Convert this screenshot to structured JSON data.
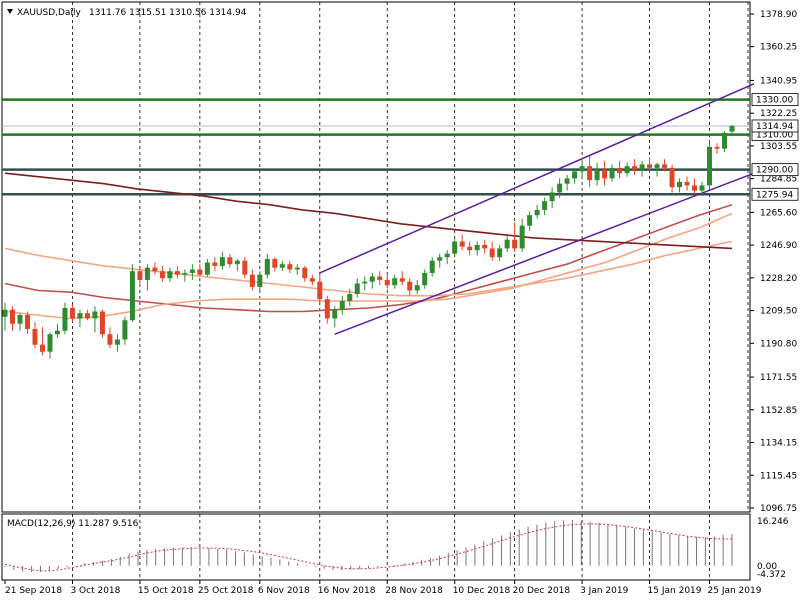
{
  "header": {
    "symbol_label": "XAUUSD,Daily",
    "ohlc": "1311.76 1315.51 1310.56 1314.94",
    "arrow_icon": "triangle-down-icon"
  },
  "macd": {
    "label": "MACD(12,26,9) 11.287 9.516",
    "scale_top": "16.246",
    "scale_zero": "0.00",
    "scale_bottom": "-4.372"
  },
  "chart_data": {
    "type": "candlestick",
    "price_axis_ticks": [
      "1378.90",
      "1360.25",
      "1340.95",
      "1322.25",
      "1303.55",
      "1284.85",
      "1265.60",
      "1246.90",
      "1228.20",
      "1209.50",
      "1190.80",
      "1171.55",
      "1152.85",
      "1134.15",
      "1115.45",
      "1096.75"
    ],
    "date_ticks": [
      "21 Sep 2018",
      "3 Oct 2018",
      "15 Oct 2018",
      "25 Oct 2018",
      "6 Nov 2018",
      "16 Nov 2018",
      "28 Nov 2018",
      "10 Dec 2018",
      "20 Dec 2018",
      "3 Jan 2019",
      "15 Jan 2019",
      "25 Jan 2019"
    ],
    "ylim": [
      1096.75,
      1378.9
    ],
    "horizontal_levels": [
      {
        "value": 1330.0,
        "label": "1330.00",
        "color": "#1f7a1f"
      },
      {
        "value": 1310.0,
        "label": "1310.00",
        "color": "#1f7a1f"
      },
      {
        "value": 1290.0,
        "label": "1290.00",
        "color": "#2f4f4f"
      },
      {
        "value": 1275.94,
        "label": "1275.94",
        "color": "#2f4f4f"
      }
    ],
    "current_price": {
      "value": 1314.94,
      "label": "1314.94"
    },
    "candles": [
      {
        "o": 1206,
        "h": 1214,
        "l": 1198,
        "c": 1210
      },
      {
        "o": 1210,
        "h": 1212,
        "l": 1198,
        "c": 1202
      },
      {
        "o": 1202,
        "h": 1208,
        "l": 1198,
        "c": 1207
      },
      {
        "o": 1207,
        "h": 1209,
        "l": 1196,
        "c": 1199
      },
      {
        "o": 1199,
        "h": 1203,
        "l": 1188,
        "c": 1190
      },
      {
        "o": 1190,
        "h": 1200,
        "l": 1184,
        "c": 1186
      },
      {
        "o": 1186,
        "h": 1197,
        "l": 1182,
        "c": 1196
      },
      {
        "o": 1196,
        "h": 1202,
        "l": 1194,
        "c": 1198
      },
      {
        "o": 1198,
        "h": 1214,
        "l": 1196,
        "c": 1211
      },
      {
        "o": 1211,
        "h": 1213,
        "l": 1203,
        "c": 1205
      },
      {
        "o": 1205,
        "h": 1210,
        "l": 1200,
        "c": 1208
      },
      {
        "o": 1208,
        "h": 1210,
        "l": 1204,
        "c": 1205
      },
      {
        "o": 1205,
        "h": 1212,
        "l": 1197,
        "c": 1209
      },
      {
        "o": 1209,
        "h": 1210,
        "l": 1194,
        "c": 1196
      },
      {
        "o": 1196,
        "h": 1200,
        "l": 1188,
        "c": 1190
      },
      {
        "o": 1190,
        "h": 1196,
        "l": 1186,
        "c": 1193
      },
      {
        "o": 1193,
        "h": 1206,
        "l": 1190,
        "c": 1204
      },
      {
        "o": 1204,
        "h": 1236,
        "l": 1203,
        "c": 1232
      },
      {
        "o": 1232,
        "h": 1234,
        "l": 1224,
        "c": 1227
      },
      {
        "o": 1227,
        "h": 1236,
        "l": 1221,
        "c": 1234
      },
      {
        "o": 1234,
        "h": 1237,
        "l": 1230,
        "c": 1232
      },
      {
        "o": 1232,
        "h": 1235,
        "l": 1226,
        "c": 1228
      },
      {
        "o": 1228,
        "h": 1234,
        "l": 1226,
        "c": 1232
      },
      {
        "o": 1232,
        "h": 1235,
        "l": 1228,
        "c": 1230
      },
      {
        "o": 1230,
        "h": 1233,
        "l": 1226,
        "c": 1231
      },
      {
        "o": 1231,
        "h": 1236,
        "l": 1227,
        "c": 1233
      },
      {
        "o": 1233,
        "h": 1236,
        "l": 1229,
        "c": 1230
      },
      {
        "o": 1230,
        "h": 1239,
        "l": 1229,
        "c": 1237
      },
      {
        "o": 1237,
        "h": 1240,
        "l": 1232,
        "c": 1235
      },
      {
        "o": 1235,
        "h": 1243,
        "l": 1233,
        "c": 1240
      },
      {
        "o": 1240,
        "h": 1242,
        "l": 1234,
        "c": 1236
      },
      {
        "o": 1236,
        "h": 1239,
        "l": 1232,
        "c": 1238
      },
      {
        "o": 1238,
        "h": 1240,
        "l": 1228,
        "c": 1230
      },
      {
        "o": 1230,
        "h": 1233,
        "l": 1221,
        "c": 1223
      },
      {
        "o": 1223,
        "h": 1232,
        "l": 1220,
        "c": 1230
      },
      {
        "o": 1230,
        "h": 1242,
        "l": 1228,
        "c": 1239
      },
      {
        "o": 1239,
        "h": 1240,
        "l": 1232,
        "c": 1234
      },
      {
        "o": 1234,
        "h": 1238,
        "l": 1232,
        "c": 1236
      },
      {
        "o": 1236,
        "h": 1238,
        "l": 1231,
        "c": 1233
      },
      {
        "o": 1233,
        "h": 1236,
        "l": 1230,
        "c": 1234
      },
      {
        "o": 1234,
        "h": 1235,
        "l": 1226,
        "c": 1228
      },
      {
        "o": 1228,
        "h": 1230,
        "l": 1224,
        "c": 1226
      },
      {
        "o": 1226,
        "h": 1230,
        "l": 1214,
        "c": 1216
      },
      {
        "o": 1216,
        "h": 1218,
        "l": 1202,
        "c": 1205
      },
      {
        "o": 1205,
        "h": 1212,
        "l": 1200,
        "c": 1210
      },
      {
        "o": 1210,
        "h": 1218,
        "l": 1207,
        "c": 1215
      },
      {
        "o": 1215,
        "h": 1222,
        "l": 1212,
        "c": 1219
      },
      {
        "o": 1219,
        "h": 1228,
        "l": 1217,
        "c": 1225
      },
      {
        "o": 1225,
        "h": 1229,
        "l": 1221,
        "c": 1226
      },
      {
        "o": 1226,
        "h": 1231,
        "l": 1222,
        "c": 1229
      },
      {
        "o": 1229,
        "h": 1232,
        "l": 1224,
        "c": 1227
      },
      {
        "o": 1227,
        "h": 1230,
        "l": 1222,
        "c": 1224
      },
      {
        "o": 1224,
        "h": 1230,
        "l": 1222,
        "c": 1228
      },
      {
        "o": 1228,
        "h": 1232,
        "l": 1224,
        "c": 1226
      },
      {
        "o": 1226,
        "h": 1228,
        "l": 1218,
        "c": 1221
      },
      {
        "o": 1221,
        "h": 1227,
        "l": 1219,
        "c": 1224
      },
      {
        "o": 1224,
        "h": 1233,
        "l": 1222,
        "c": 1231
      },
      {
        "o": 1231,
        "h": 1240,
        "l": 1229,
        "c": 1238
      },
      {
        "o": 1238,
        "h": 1242,
        "l": 1234,
        "c": 1240
      },
      {
        "o": 1240,
        "h": 1244,
        "l": 1236,
        "c": 1242
      },
      {
        "o": 1242,
        "h": 1251,
        "l": 1240,
        "c": 1249
      },
      {
        "o": 1249,
        "h": 1253,
        "l": 1244,
        "c": 1246
      },
      {
        "o": 1246,
        "h": 1249,
        "l": 1241,
        "c": 1244
      },
      {
        "o": 1244,
        "h": 1249,
        "l": 1241,
        "c": 1247
      },
      {
        "o": 1247,
        "h": 1250,
        "l": 1242,
        "c": 1245
      },
      {
        "o": 1245,
        "h": 1249,
        "l": 1238,
        "c": 1240
      },
      {
        "o": 1240,
        "h": 1247,
        "l": 1238,
        "c": 1245
      },
      {
        "o": 1245,
        "h": 1252,
        "l": 1243,
        "c": 1250
      },
      {
        "o": 1250,
        "h": 1260,
        "l": 1243,
        "c": 1245
      },
      {
        "o": 1245,
        "h": 1262,
        "l": 1243,
        "c": 1258
      },
      {
        "o": 1258,
        "h": 1266,
        "l": 1255,
        "c": 1264
      },
      {
        "o": 1264,
        "h": 1270,
        "l": 1262,
        "c": 1267
      },
      {
        "o": 1267,
        "h": 1274,
        "l": 1264,
        "c": 1272
      },
      {
        "o": 1272,
        "h": 1280,
        "l": 1268,
        "c": 1277
      },
      {
        "o": 1277,
        "h": 1285,
        "l": 1274,
        "c": 1282
      },
      {
        "o": 1282,
        "h": 1287,
        "l": 1278,
        "c": 1285
      },
      {
        "o": 1285,
        "h": 1291,
        "l": 1282,
        "c": 1289
      },
      {
        "o": 1289,
        "h": 1297,
        "l": 1285,
        "c": 1292
      },
      {
        "o": 1292,
        "h": 1298,
        "l": 1280,
        "c": 1284
      },
      {
        "o": 1284,
        "h": 1294,
        "l": 1281,
        "c": 1290
      },
      {
        "o": 1290,
        "h": 1295,
        "l": 1281,
        "c": 1285
      },
      {
        "o": 1285,
        "h": 1293,
        "l": 1283,
        "c": 1291
      },
      {
        "o": 1291,
        "h": 1295,
        "l": 1285,
        "c": 1288
      },
      {
        "o": 1288,
        "h": 1294,
        "l": 1286,
        "c": 1292
      },
      {
        "o": 1292,
        "h": 1296,
        "l": 1287,
        "c": 1290
      },
      {
        "o": 1290,
        "h": 1295,
        "l": 1286,
        "c": 1293
      },
      {
        "o": 1293,
        "h": 1297,
        "l": 1289,
        "c": 1291
      },
      {
        "o": 1291,
        "h": 1294,
        "l": 1286,
        "c": 1293
      },
      {
        "o": 1293,
        "h": 1296,
        "l": 1289,
        "c": 1291
      },
      {
        "o": 1291,
        "h": 1293,
        "l": 1277,
        "c": 1280
      },
      {
        "o": 1280,
        "h": 1285,
        "l": 1277,
        "c": 1283
      },
      {
        "o": 1283,
        "h": 1286,
        "l": 1278,
        "c": 1281
      },
      {
        "o": 1281,
        "h": 1285,
        "l": 1276,
        "c": 1278
      },
      {
        "o": 1278,
        "h": 1283,
        "l": 1275,
        "c": 1281
      },
      {
        "o": 1281,
        "h": 1306,
        "l": 1279,
        "c": 1303
      },
      {
        "o": 1303,
        "h": 1305,
        "l": 1299,
        "c": 1302
      },
      {
        "o": 1302,
        "h": 1312,
        "l": 1300,
        "c": 1311
      },
      {
        "o": 1311.76,
        "h": 1315.51,
        "l": 1310.56,
        "c": 1314.94
      }
    ],
    "sma_fast": [
      1225,
      1221,
      1220,
      1217,
      1215,
      1213,
      1211,
      1210,
      1209,
      1209,
      1210,
      1211,
      1213,
      1216,
      1221,
      1226,
      1231,
      1236,
      1243,
      1250,
      1257,
      1264,
      1270
    ],
    "sma_mid": [
      1209,
      1207,
      1205,
      1206,
      1209,
      1213,
      1215,
      1216,
      1216,
      1216,
      1215,
      1215,
      1215,
      1215,
      1216,
      1219,
      1222,
      1227,
      1232,
      1237,
      1244,
      1251,
      1257,
      1265
    ],
    "sma_slow": [
      1245,
      1241,
      1238,
      1235,
      1233,
      1231,
      1229,
      1227,
      1225,
      1223,
      1221,
      1219,
      1218,
      1218,
      1219,
      1222,
      1225,
      1228,
      1232,
      1236,
      1241,
      1245,
      1249
    ],
    "sma_200": [
      1288,
      1286,
      1284,
      1282,
      1279,
      1277,
      1275,
      1272,
      1270,
      1267,
      1265,
      1262,
      1259,
      1257,
      1255,
      1253,
      1251,
      1250,
      1249,
      1248,
      1247,
      1246,
      1245
    ],
    "macd_histogram": [
      -0.5,
      -1.5,
      -2.0,
      -2.3,
      -2.2,
      -1.8,
      -1.2,
      -0.6,
      0.2,
      0.9,
      1.4,
      1.8,
      2.3,
      3.1,
      4.3,
      5.0,
      5.6,
      6.0,
      6.2,
      6.4,
      6.5,
      6.6,
      6.5,
      6.3,
      6.0,
      5.6,
      5.2,
      4.7,
      4.0,
      3.4,
      2.8,
      2.2,
      1.5,
      0.8,
      0.2,
      -0.4,
      -1.1,
      -1.5,
      -1.6,
      -1.4,
      -1.2,
      -0.8,
      -0.4,
      -0.1,
      0.3,
      0.8,
      1.4,
      2.1,
      2.8,
      3.6,
      4.6,
      5.5,
      6.5,
      7.5,
      8.6,
      9.7,
      10.8,
      11.9,
      12.9,
      13.8,
      14.6,
      15.3,
      15.8,
      16.1,
      16.2,
      16.0,
      15.7,
      15.3,
      14.8,
      14.3,
      13.8,
      13.3,
      12.8,
      12.3,
      11.8,
      11.3,
      10.8,
      10.4,
      10.2,
      10.1,
      10.4,
      11.0,
      11.3
    ],
    "macd_signal": [
      0.5,
      -0.2,
      -0.9,
      -1.5,
      -1.8,
      -1.8,
      -1.5,
      -1.0,
      -0.4,
      0.2,
      0.8,
      1.3,
      1.8,
      2.4,
      3.1,
      3.8,
      4.5,
      5.1,
      5.5,
      5.8,
      6.0,
      6.2,
      6.3,
      6.3,
      6.2,
      6.0,
      5.8,
      5.4,
      5.0,
      4.5,
      3.9,
      3.3,
      2.6,
      2.0,
      1.3,
      0.6,
      0.0,
      -0.5,
      -0.9,
      -1.1,
      -1.1,
      -1.0,
      -0.8,
      -0.5,
      -0.2,
      0.2,
      0.7,
      1.2,
      1.8,
      2.5,
      3.3,
      4.1,
      5.0,
      5.9,
      6.9,
      7.9,
      8.9,
      9.9,
      10.8,
      11.7,
      12.5,
      13.2,
      13.8,
      14.3,
      14.6,
      14.8,
      14.9,
      14.8,
      14.6,
      14.3,
      13.9,
      13.5,
      13.0,
      12.5,
      12.0,
      11.5,
      11.0,
      10.5,
      10.1,
      9.8,
      9.6,
      9.5,
      9.516
    ]
  }
}
